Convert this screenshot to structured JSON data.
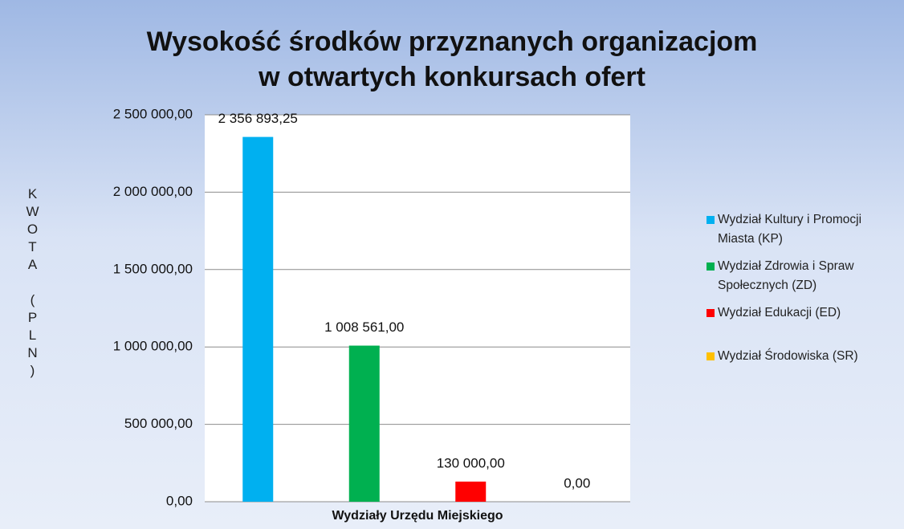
{
  "chart_data": {
    "type": "bar",
    "title": "Wysokość środków przyznanych organizacjom\nw otwartych konkursach ofert",
    "x_label": "Wydziały Urzędu Miejskiego",
    "y_label": "KWOTA (PLN)",
    "categories": [
      null
    ],
    "series": [
      {
        "name": "Wydział Kultury i Promocji Miasta (KP)",
        "color": "#00b0f0",
        "values": [
          2356893.25
        ],
        "value_labels": [
          "2 356 893,25"
        ]
      },
      {
        "name": "Wydział Zdrowia i Spraw Społecznych (ZD)",
        "color": "#00b050",
        "values": [
          1008561
        ],
        "value_labels": [
          "1 008 561,00"
        ]
      },
      {
        "name": "Wydział Edukacji (ED)",
        "color": "#ff0000",
        "values": [
          130000
        ],
        "value_labels": [
          "130 000,00"
        ]
      },
      {
        "name": "Wydział Środowiska (SR)",
        "color": "#ffc000",
        "values": [
          0
        ],
        "value_labels": [
          "0,00"
        ]
      }
    ],
    "ylim": [
      0,
      2500000
    ],
    "yticks": [
      {
        "value": 0,
        "label": "0,00"
      },
      {
        "value": 500000,
        "label": "500 000,00"
      },
      {
        "value": 1000000,
        "label": "1 000 000,00"
      },
      {
        "value": 1500000,
        "label": "1 500 000,00"
      },
      {
        "value": 2000000,
        "label": "2 000 000,00"
      },
      {
        "value": 2500000,
        "label": "2 500 000,00"
      }
    ],
    "grid": true,
    "legend": "right"
  }
}
